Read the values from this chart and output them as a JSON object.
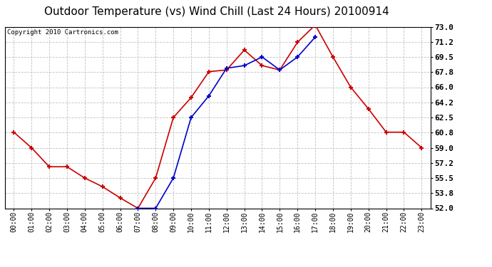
{
  "title": "Outdoor Temperature (vs) Wind Chill (Last 24 Hours) 20100914",
  "copyright": "Copyright 2010 Cartronics.com",
  "x_labels": [
    "00:00",
    "01:00",
    "02:00",
    "03:00",
    "04:00",
    "05:00",
    "06:00",
    "07:00",
    "08:00",
    "09:00",
    "10:00",
    "11:00",
    "12:00",
    "13:00",
    "14:00",
    "15:00",
    "16:00",
    "17:00",
    "18:00",
    "19:00",
    "20:00",
    "21:00",
    "22:00",
    "23:00"
  ],
  "red_temp": [
    60.8,
    59.0,
    56.8,
    56.8,
    55.5,
    54.5,
    53.2,
    52.0,
    55.5,
    62.5,
    64.8,
    67.8,
    68.0,
    70.3,
    68.5,
    68.0,
    71.2,
    73.2,
    69.5,
    66.0,
    63.5,
    60.8,
    60.8,
    59.0
  ],
  "blue_wc": [
    null,
    null,
    null,
    null,
    null,
    null,
    null,
    52.0,
    52.0,
    55.5,
    62.5,
    65.0,
    68.2,
    68.5,
    69.5,
    68.0,
    69.5,
    71.8,
    null,
    null,
    null,
    null,
    null,
    null
  ],
  "ylim": [
    52.0,
    73.0
  ],
  "yticks": [
    52.0,
    53.8,
    55.5,
    57.2,
    59.0,
    60.8,
    62.5,
    64.2,
    66.0,
    67.8,
    69.5,
    71.2,
    73.0
  ],
  "red_color": "#cc0000",
  "blue_color": "#0000cc",
  "bg_color": "#ffffff",
  "grid_color": "#bbbbbb",
  "title_fontsize": 11,
  "copyright_fontsize": 6.5,
  "tick_fontsize": 7,
  "ytick_fontsize": 8
}
